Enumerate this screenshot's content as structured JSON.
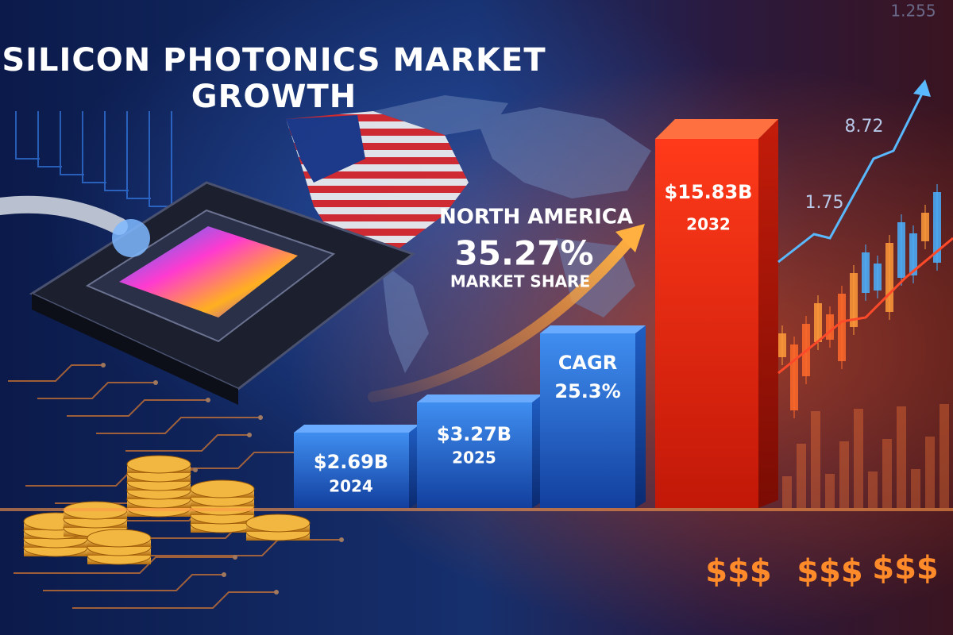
{
  "title_lines": [
    "SILICON PHOTONICS MARKET",
    "GROWTH"
  ],
  "region": {
    "name": "NORTH AMERICA",
    "share": "35.27%",
    "caption": "MARKET SHARE"
  },
  "bars": [
    {
      "value": "$2.69B",
      "year": "2024"
    },
    {
      "value": "$3.27B",
      "year": "2025"
    },
    {
      "label": "CAGR",
      "value": "25.3%"
    },
    {
      "value": "$15.83B",
      "year": "2032"
    }
  ],
  "ticker_numbers": [
    "1.255",
    "8.72",
    "1.75"
  ],
  "currency_marks": [
    "$$$",
    "$$$",
    "$$$"
  ]
}
